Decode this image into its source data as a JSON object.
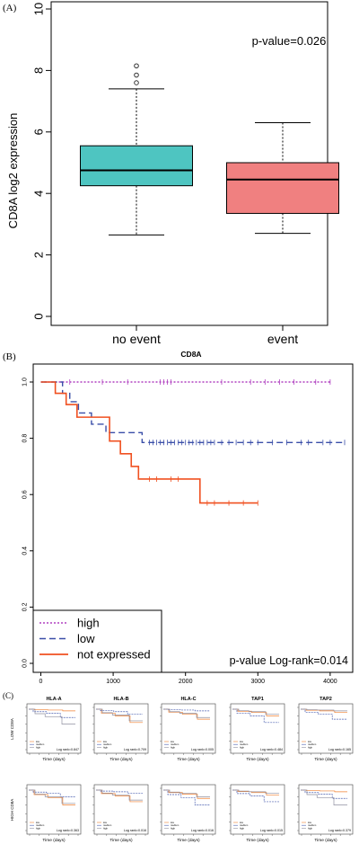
{
  "panel_labels": {
    "a": "(A)",
    "b": "(B)",
    "c": "(C)"
  },
  "chart_data": [
    {
      "type": "box",
      "ylabel": "CD8A log2 expression",
      "ylim": [
        0,
        10
      ],
      "yticks": [
        "0",
        "2",
        "4",
        "6",
        "8",
        "10"
      ],
      "categories": [
        "no event",
        "event"
      ],
      "annotation": "p-value=0.026",
      "boxes": [
        {
          "category": "no event",
          "min": 2.65,
          "q1": 4.25,
          "median": 4.75,
          "q3": 5.55,
          "max": 7.4,
          "outliers": [
            7.6,
            7.85,
            8.15
          ],
          "color": "#4ec5c1"
        },
        {
          "category": "event",
          "min": 2.7,
          "q1": 3.35,
          "median": 4.45,
          "q3": 5.0,
          "max": 6.3,
          "outliers": [],
          "color": "#f08080"
        }
      ]
    },
    {
      "type": "line",
      "title": "CD8A",
      "xlim": [
        0,
        4200
      ],
      "ylim": [
        0,
        1.0
      ],
      "xticks": [
        "0",
        "1000",
        "2000",
        "3000",
        "4000"
      ],
      "yticks": [
        "0.0",
        "0.2",
        "0.4",
        "0.6",
        "0.8",
        "1.0"
      ],
      "legend_position": "bottom-left",
      "annotation": "p-value Log-rank=0.014",
      "series": [
        {
          "name": "high",
          "color": "#b040c0",
          "x": [
            0,
            4000
          ],
          "y": [
            1.0,
            1.0
          ],
          "censor_x": [
            400,
            850,
            1200,
            1650,
            1700,
            1750,
            1800,
            2500,
            2900,
            3100,
            3300,
            3500,
            3800,
            4000
          ]
        },
        {
          "name": "low",
          "color": "#3a4ea8",
          "x": [
            0,
            300,
            400,
            520,
            700,
            900,
            1400,
            4200
          ],
          "y": [
            1.0,
            0.96,
            0.93,
            0.89,
            0.85,
            0.82,
            0.785,
            0.785
          ],
          "censor_x": [
            1500,
            1550,
            1600,
            1650,
            1700,
            1750,
            1800,
            1850,
            1900,
            1950,
            2000,
            2050,
            2100,
            2150,
            2200,
            2250,
            2300,
            2350,
            2400,
            2500,
            2600,
            2700,
            2800,
            2900,
            3000,
            3200,
            3400,
            3600,
            3700,
            3900,
            4000,
            4200
          ]
        },
        {
          "name": "not expressed",
          "color": "#f05020",
          "x": [
            0,
            200,
            350,
            500,
            600,
            950,
            1100,
            1250,
            1350,
            2200,
            3000
          ],
          "y": [
            1.0,
            0.96,
            0.92,
            0.875,
            0.875,
            0.79,
            0.745,
            0.7,
            0.655,
            0.57,
            0.57
          ],
          "censor_x": [
            1500,
            1600,
            1800,
            1900,
            2300,
            2400,
            2600,
            2800,
            3000
          ]
        }
      ]
    }
  ],
  "panel_c": {
    "row_labels": [
      "LOW CD8A",
      "HIGH CD8A"
    ],
    "xlabel": "Time (days)",
    "legend_items": [
      "low",
      "medium",
      "high"
    ],
    "plots": [
      {
        "title": "HLA-A",
        "pvalue": "Log rank=0.847"
      },
      {
        "title": "HLA-B",
        "pvalue": "Log rank=0.709"
      },
      {
        "title": "HLA-C",
        "pvalue": "Log rank=0.005"
      },
      {
        "title": "TAP1",
        "pvalue": "Log rank=0.484"
      },
      {
        "title": "TAP2",
        "pvalue": "Log rank=0.165"
      },
      {
        "title": "",
        "pvalue": "Log rank=0.363"
      },
      {
        "title": "",
        "pvalue": "Log rank=0.016"
      },
      {
        "title": "",
        "pvalue": "Log rank=0.016"
      },
      {
        "title": "",
        "pvalue": "Log rank=0.015"
      },
      {
        "title": "",
        "pvalue": "Log rank=0.379"
      }
    ]
  }
}
